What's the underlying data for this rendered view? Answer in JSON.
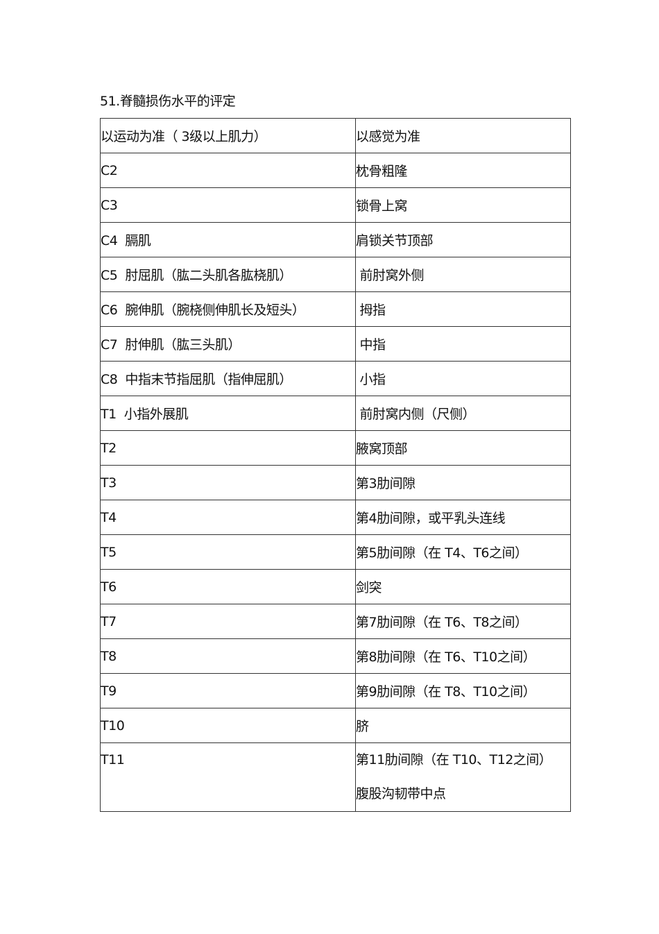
{
  "title": "51.脊髓损伤水平的评定",
  "table": {
    "headers": [
      "以运动为准（ 3级以上肌力）",
      "以感觉为准"
    ],
    "rows": [
      {
        "motor": "C2",
        "sensory": "枕骨粗隆"
      },
      {
        "motor": "C3",
        "sensory": "锁骨上窝"
      },
      {
        "motor": "C4  膈肌",
        "sensory": "肩锁关节顶部"
      },
      {
        "motor": "C5  肘屈肌（肱二头肌各肱桡肌）",
        "sensory": " 前肘窝外侧"
      },
      {
        "motor": "C6  腕伸肌（腕桡侧伸肌长及短头）",
        "sensory": " 拇指"
      },
      {
        "motor": "C7  肘伸肌（肱三头肌）",
        "sensory": " 中指"
      },
      {
        "motor": "C8  中指末节指屈肌（指伸屈肌）",
        "sensory": " 小指"
      },
      {
        "motor": "T1  小指外展肌",
        "sensory": " 前肘窝内侧（尺侧）"
      },
      {
        "motor": "T2",
        "sensory": "腋窝顶部"
      },
      {
        "motor": "T3",
        "sensory": "第3肋间隙"
      },
      {
        "motor": "T4",
        "sensory": "第4肋间隙，或平乳头连线"
      },
      {
        "motor": "T5",
        "sensory": "第5肋间隙（在 T4、T6之间）"
      },
      {
        "motor": "T6",
        "sensory": "剑突"
      },
      {
        "motor": "T7",
        "sensory": "第7肋间隙（在 T6、T8之间）"
      },
      {
        "motor": "T8",
        "sensory": "第8肋间隙（在 T6、T10之间）"
      },
      {
        "motor": "T9",
        "sensory": "第9肋间隙（在 T8、T10之间）"
      },
      {
        "motor": "T10",
        "sensory": "脐"
      }
    ],
    "last_row": {
      "motor": "T11",
      "sensory_lines": [
        "第11肋间隙（在 T10、T12之间）",
        "腹股沟韧带中点"
      ]
    }
  }
}
